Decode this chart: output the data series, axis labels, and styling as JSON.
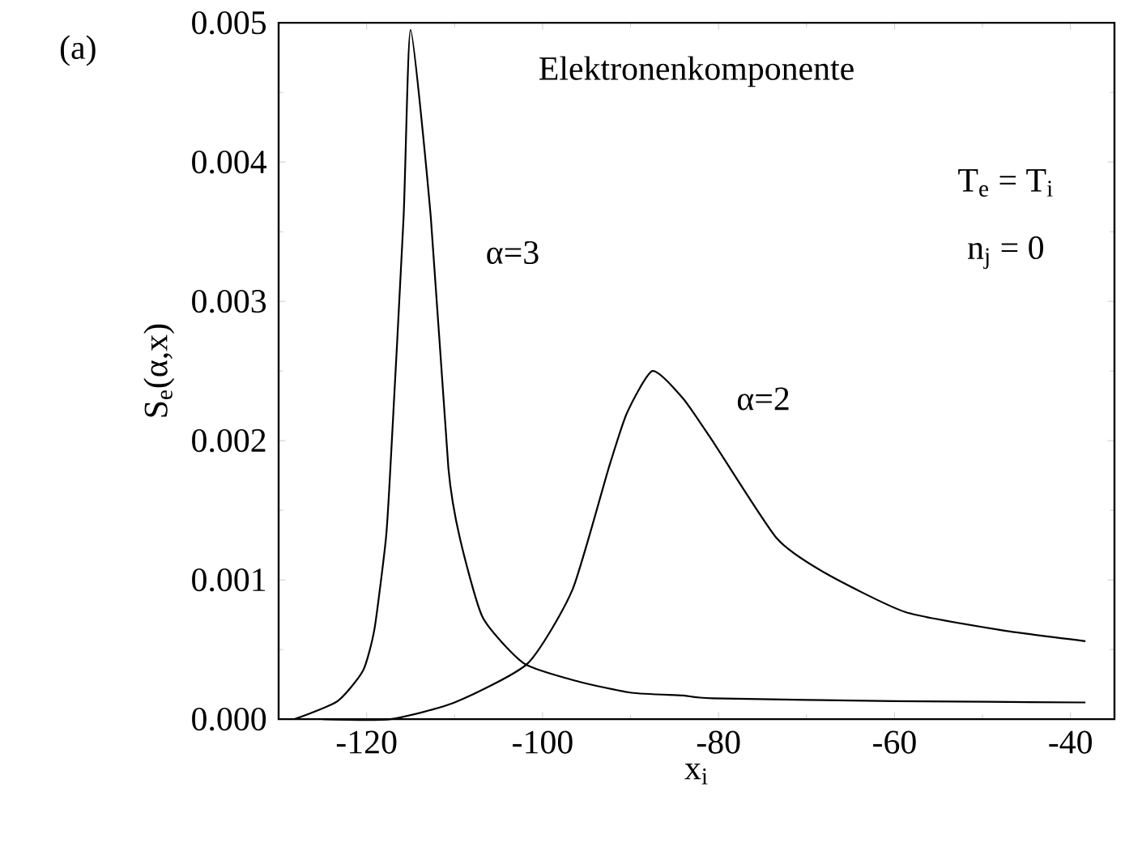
{
  "chart_data": {
    "type": "line",
    "xlabel": "x$_{i}$",
    "ylabel": "S$_{e}$(α,x)",
    "xlim": [
      -130,
      -35
    ],
    "ylim": [
      0,
      0.005
    ],
    "xticks": [
      -120,
      -100,
      -80,
      -60,
      -40
    ],
    "yticks": [
      {
        "value": 0,
        "label": "0.000"
      },
      {
        "value": 0.001,
        "label": "0.001"
      },
      {
        "value": 0.002,
        "label": "0.002"
      },
      {
        "value": 0.003,
        "label": "0.003"
      },
      {
        "value": 0.004,
        "label": "0.004"
      },
      {
        "value": 0.005,
        "label": "0.005"
      }
    ],
    "grid": false,
    "legend": false,
    "marker": "none",
    "line_style": "solid",
    "series": [
      {
        "color": "#000000",
        "x": [
          -128.2,
          -123.3,
          -120.4,
          -119.1,
          -117.8,
          -117.3,
          -115.8,
          -115,
          -112.7,
          -110.7,
          -109.4,
          -106.8,
          -102.1,
          -95.9,
          -89.9,
          -84,
          -80.7,
          -60,
          -38.3
        ],
        "values": [
          0.0,
          0.00013,
          0.00035,
          0.00065,
          0.0013,
          0.0018,
          0.0036,
          0.00495,
          0.0036,
          0.0018,
          0.0013,
          0.00073,
          0.0004,
          0.00027,
          0.00019,
          0.00017,
          0.00015,
          0.00013,
          0.00012
        ]
      },
      {
        "color": "#000000",
        "x": [
          -125,
          -117.3,
          -110,
          -101.7,
          -96.6,
          -92.5,
          -90.4,
          -87.5,
          -84,
          -80.5,
          -73.4,
          -67.9,
          -58.8,
          -47.9,
          -38.3
        ],
        "values": [
          0.0,
          0.0,
          0.00012,
          0.0004,
          0.00093,
          0.0018,
          0.0022,
          0.0025,
          0.0023,
          0.00198,
          0.0013,
          0.00105,
          0.00077,
          0.00064,
          0.00056
        ]
      }
    ],
    "annotations": [
      "α=3",
      "α=2",
      "Elektronenkomponente",
      "T$_{e}$ = T$_{i}$",
      "n$_{j}$ = 0",
      "(a)"
    ]
  }
}
